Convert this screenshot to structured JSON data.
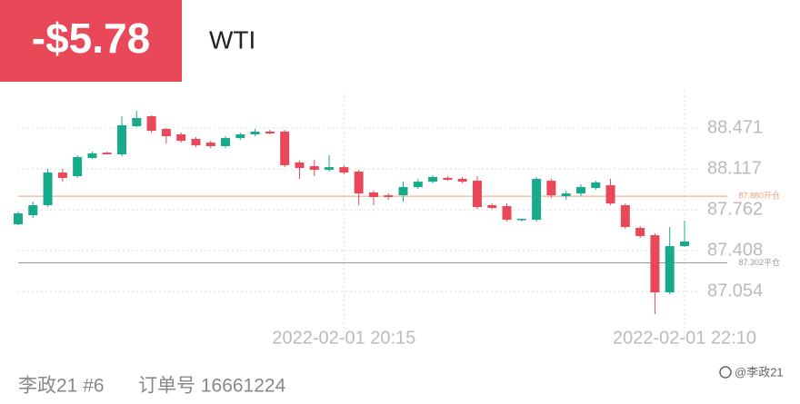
{
  "header": {
    "amount": "-$5.78",
    "symbol": "WTI"
  },
  "chart_data": {
    "type": "candlestick",
    "categories": [
      null,
      null,
      null,
      null,
      null,
      null,
      null,
      null,
      null,
      null,
      null,
      null,
      null,
      null,
      null,
      null,
      null,
      null,
      null,
      null,
      null,
      null,
      "2022-02-01 20:15",
      null,
      null,
      null,
      null,
      null,
      null,
      null,
      null,
      null,
      null,
      null,
      null,
      null,
      null,
      null,
      null,
      null,
      null,
      null,
      null,
      null,
      null,
      "2022-02-01 22:10"
    ],
    "open": [
      87.636,
      87.715,
      87.802,
      88.085,
      88.054,
      88.211,
      88.258,
      88.243,
      88.487,
      88.573,
      88.463,
      88.416,
      88.377,
      88.345,
      88.314,
      88.384,
      88.416,
      88.44,
      88.44,
      88.172,
      88.14,
      88.109,
      88.132,
      88.093,
      87.912,
      87.888,
      87.888,
      87.959,
      88.006,
      88.038,
      88.03,
      88.014,
      87.802,
      87.794,
      87.676,
      87.676,
      88.014,
      87.88,
      87.904,
      87.951,
      87.975,
      87.802,
      87.605,
      87.542,
      87.046,
      87.447
    ],
    "high": [
      87.747,
      87.833,
      88.117,
      88.117,
      88.235,
      88.266,
      88.266,
      88.573,
      88.621,
      88.581,
      88.471,
      88.432,
      88.392,
      88.361,
      88.4,
      88.432,
      88.463,
      88.455,
      88.455,
      88.188,
      88.195,
      88.235,
      88.148,
      88.109,
      87.928,
      87.904,
      88.006,
      88.03,
      88.062,
      88.054,
      88.046,
      88.054,
      87.817,
      87.817,
      87.684,
      88.046,
      88.03,
      87.928,
      87.983,
      88.014,
      88.03,
      87.817,
      87.621,
      87.558,
      87.613,
      87.668
    ],
    "low": [
      87.628,
      87.691,
      87.786,
      88.006,
      88.038,
      88.203,
      88.243,
      88.227,
      88.479,
      88.432,
      88.337,
      88.345,
      88.306,
      88.298,
      88.298,
      88.369,
      88.4,
      88.416,
      88.132,
      88.03,
      88.054,
      88.093,
      88.069,
      87.802,
      87.802,
      87.849,
      87.833,
      87.943,
      87.991,
      88.014,
      87.991,
      87.77,
      87.77,
      87.66,
      87.66,
      87.66,
      87.865,
      87.849,
      87.88,
      87.936,
      87.802,
      87.597,
      87.518,
      86.857,
      87.03,
      87.44
    ],
    "close": [
      87.731,
      87.802,
      88.085,
      88.038,
      88.219,
      88.251,
      88.243,
      88.495,
      88.558,
      88.447,
      88.4,
      88.361,
      88.321,
      88.314,
      88.384,
      88.416,
      88.44,
      88.424,
      88.148,
      88.125,
      88.109,
      88.132,
      88.085,
      87.904,
      87.873,
      87.873,
      87.959,
      88.006,
      88.046,
      88.022,
      88.006,
      87.786,
      87.778,
      87.676,
      87.684,
      88.03,
      87.888,
      87.904,
      87.959,
      87.999,
      87.817,
      87.613,
      87.534,
      87.046,
      87.447,
      87.487
    ],
    "up_color": "#17ab8c",
    "down_color": "#e84858",
    "ylim": [
      86.826,
      88.794
    ],
    "yticks": [
      87.054,
      87.408,
      87.762,
      88.117,
      88.471
    ],
    "grid": true,
    "reference_lines": [
      {
        "value": 87.88,
        "label": "87.880开仓",
        "color": "#f0a07a"
      },
      {
        "value": 87.302,
        "label": "87.302平仓",
        "color": "#9a9a9a"
      }
    ]
  },
  "footer": {
    "account": "李政21 #6",
    "order": "订单号 16661224",
    "watermark": "@李政21"
  }
}
